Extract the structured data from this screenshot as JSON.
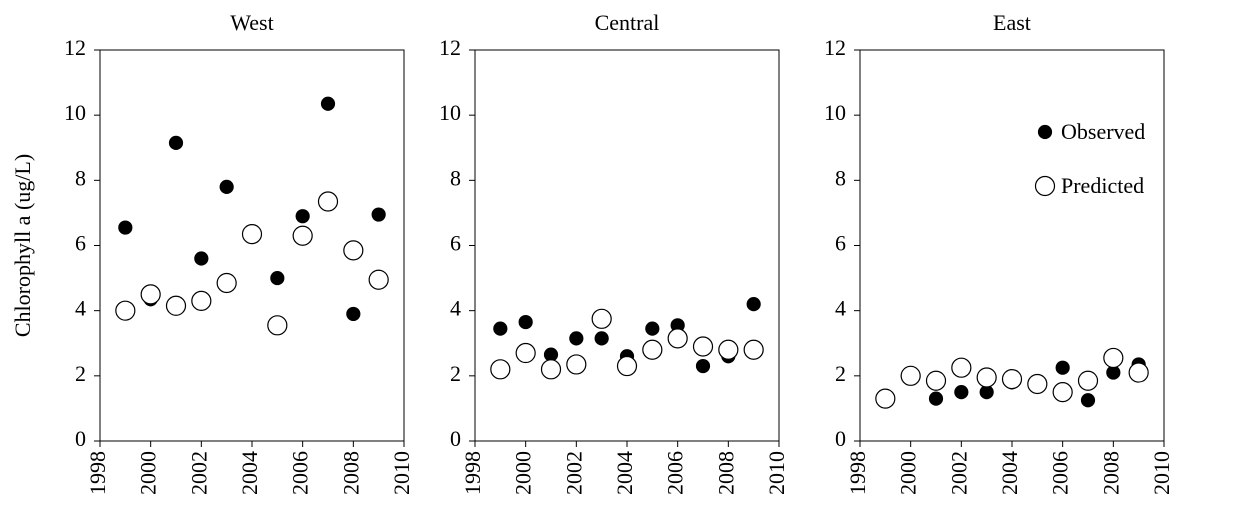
{
  "chart_data": [
    {
      "type": "scatter",
      "title": "West",
      "y_label": "Chlorophyll a  (ug/L)",
      "x": [
        1999,
        2000,
        2001,
        2002,
        2003,
        2004,
        2005,
        2006,
        2007,
        2008,
        2009
      ],
      "series": [
        {
          "color": "#000000",
          "fill": "#000000",
          "values": [
            6.55,
            4.35,
            9.15,
            5.6,
            7.8,
            6.35,
            5.0,
            6.9,
            10.35,
            3.9,
            6.95
          ]
        },
        {
          "color": "#000000",
          "fill": "#ffffff",
          "values": [
            4.0,
            4.5,
            4.15,
            4.3,
            4.85,
            6.35,
            3.55,
            6.3,
            7.35,
            5.85,
            4.95
          ]
        }
      ],
      "xlim": [
        1998,
        2010
      ],
      "ylim": [
        0,
        12
      ],
      "xticks": [
        1998,
        2000,
        2002,
        2004,
        2006,
        2008,
        2010
      ],
      "yticks": [
        0,
        2,
        4,
        6,
        8,
        10,
        12
      ]
    },
    {
      "type": "scatter",
      "title": "Central",
      "x": [
        1999,
        2000,
        2001,
        2002,
        2003,
        2004,
        2005,
        2006,
        2007,
        2008,
        2009
      ],
      "series": [
        {
          "color": "#000000",
          "fill": "#000000",
          "values": [
            3.45,
            3.65,
            2.65,
            3.15,
            3.15,
            2.6,
            3.45,
            3.55,
            2.3,
            2.6,
            4.2
          ]
        },
        {
          "color": "#000000",
          "fill": "#ffffff",
          "values": [
            2.2,
            2.7,
            2.2,
            2.35,
            3.75,
            2.3,
            2.8,
            3.15,
            2.9,
            2.8,
            2.8
          ]
        }
      ],
      "xlim": [
        1998,
        2010
      ],
      "ylim": [
        0,
        12
      ],
      "xticks": [
        1998,
        2000,
        2002,
        2004,
        2006,
        2008,
        2010
      ],
      "yticks": [
        0,
        2,
        4,
        6,
        8,
        10,
        12
      ]
    },
    {
      "type": "scatter",
      "title": "East",
      "x": [
        1999,
        2000,
        2001,
        2002,
        2003,
        2004,
        2005,
        2006,
        2007,
        2008,
        2009
      ],
      "series": [
        {
          "name": "Observed",
          "color": "#000000",
          "fill": "#000000",
          "values": [
            1.3,
            1.95,
            1.3,
            1.5,
            1.5,
            1.8,
            1.8,
            2.25,
            1.25,
            2.1,
            2.35
          ]
        },
        {
          "name": "Predicted",
          "color": "#000000",
          "fill": "#ffffff",
          "values": [
            1.3,
            2.0,
            1.85,
            2.25,
            1.95,
            1.9,
            1.75,
            1.5,
            1.85,
            2.55,
            2.1
          ]
        }
      ],
      "xlim": [
        1998,
        2010
      ],
      "ylim": [
        0,
        12
      ],
      "xticks": [
        1998,
        2000,
        2002,
        2004,
        2006,
        2008,
        2010
      ],
      "yticks": [
        0,
        2,
        4,
        6,
        8,
        10,
        12
      ]
    }
  ]
}
